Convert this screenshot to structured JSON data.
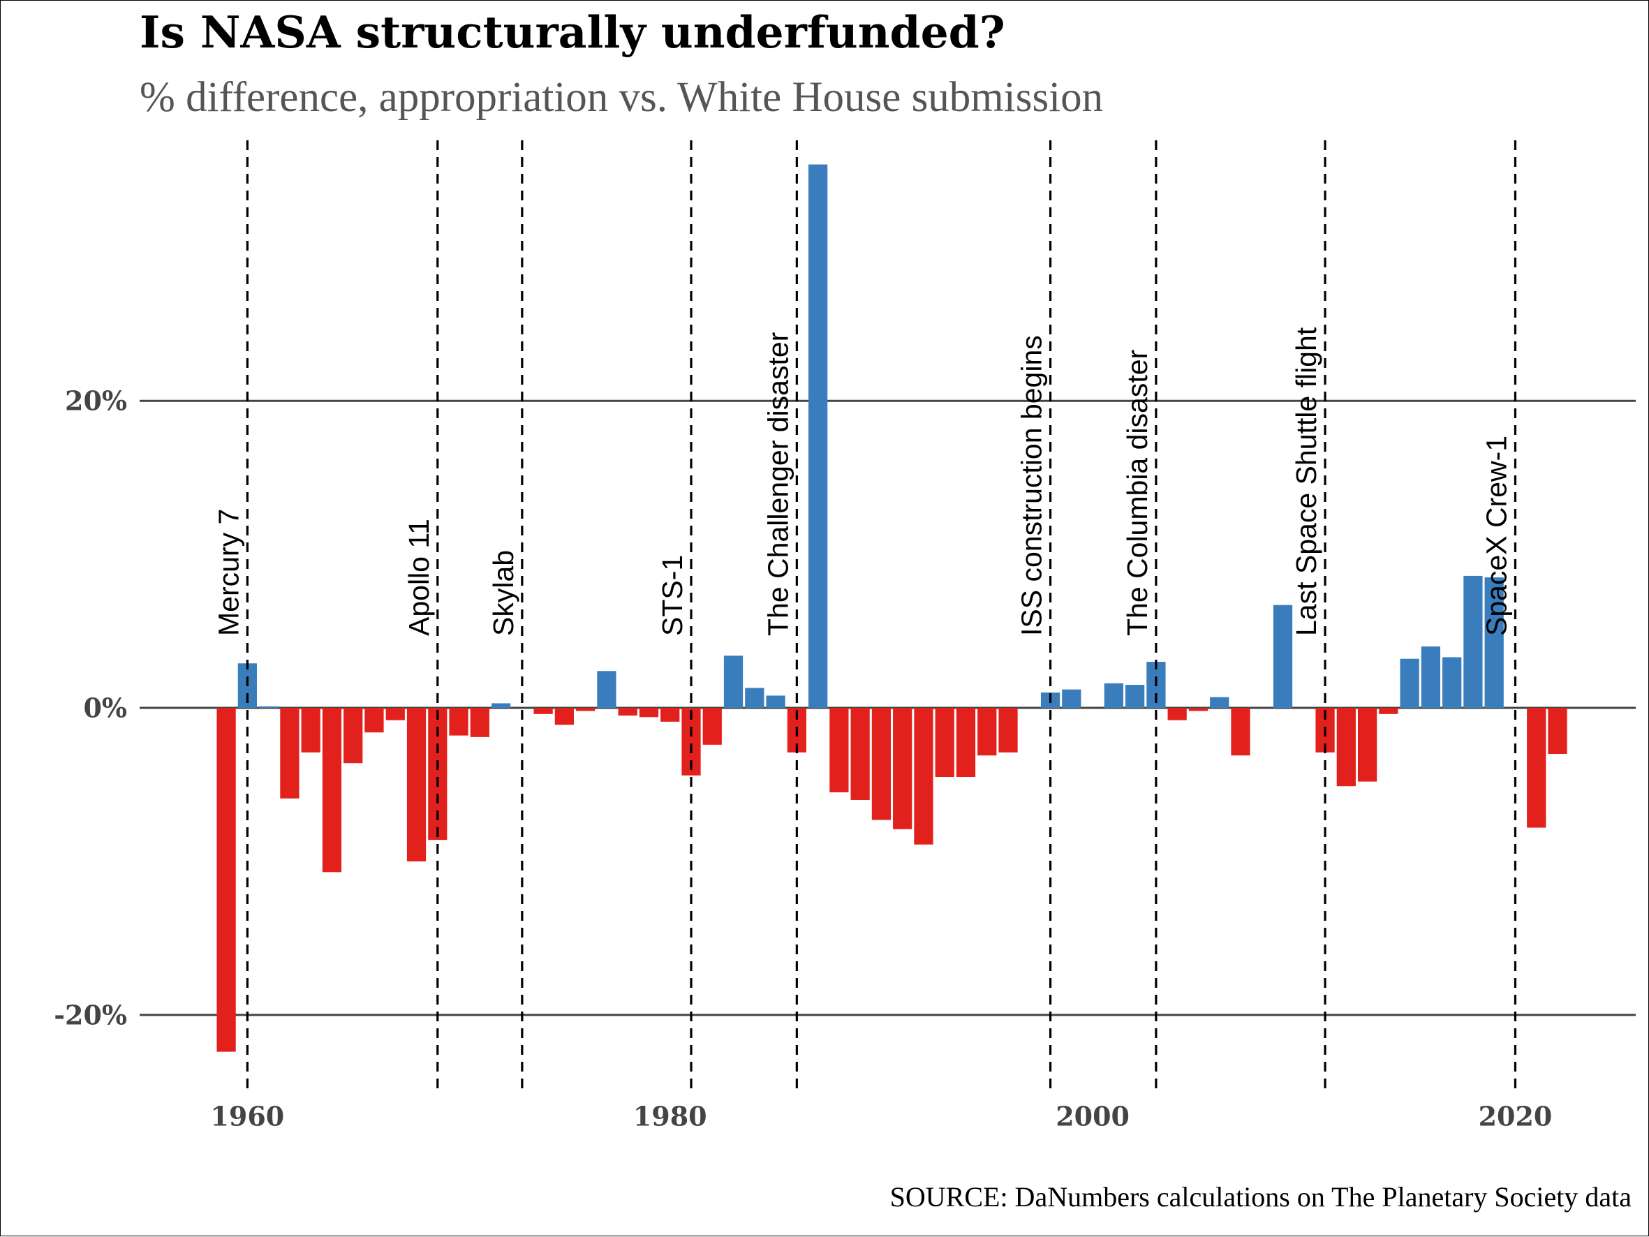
{
  "chart_data": {
    "type": "bar",
    "title": "Is NASA structurally underfunded?",
    "subtitle": "% difference, appropriation vs. White House submission",
    "source": "SOURCE: DaNumbers calculations on The Planetary Society data",
    "xlabel": "",
    "ylabel": "",
    "xlim": [
      1954.9,
      2025.7
    ],
    "ylim": [
      -25.1,
      37.2
    ],
    "x_ticks": [
      {
        "value": 1960,
        "label": "1960"
      },
      {
        "value": 1980,
        "label": "1980"
      },
      {
        "value": 2000,
        "label": "2000"
      },
      {
        "value": 2020,
        "label": "2020"
      }
    ],
    "y_ticks": [
      {
        "value": 20,
        "label": "20%"
      },
      {
        "value": 0,
        "label": "0%"
      },
      {
        "value": -20,
        "label": "-20%"
      }
    ],
    "grid": {
      "x": false,
      "y": true
    },
    "colors": {
      "positive": "#3a7dbc",
      "negative": "#e3211c",
      "gridline": "#444444",
      "event_line": "#000000"
    },
    "x": [
      1959,
      1960,
      1961,
      1962,
      1963,
      1964,
      1965,
      1966,
      1967,
      1968,
      1969,
      1970,
      1971,
      1972,
      1973,
      1974,
      1975,
      1976,
      1977,
      1978,
      1979,
      1980,
      1981,
      1982,
      1983,
      1984,
      1985,
      1986,
      1987,
      1988,
      1989,
      1990,
      1991,
      1992,
      1993,
      1994,
      1995,
      1996,
      1997,
      1998,
      1999,
      2000,
      2001,
      2002,
      2003,
      2004,
      2005,
      2006,
      2007,
      2008,
      2009,
      2010,
      2011,
      2012,
      2013,
      2014,
      2015,
      2016,
      2017,
      2018,
      2019,
      2020,
      2021,
      2022
    ],
    "values": [
      -22.4,
      2.9,
      0.1,
      -5.9,
      -2.9,
      -10.7,
      -3.6,
      -1.6,
      -0.8,
      -10.0,
      -8.6,
      -1.8,
      -1.9,
      0.3,
      0.0,
      -0.4,
      -1.1,
      -0.2,
      2.4,
      -0.5,
      -0.6,
      -0.9,
      -4.4,
      -2.4,
      3.4,
      1.3,
      0.8,
      -2.9,
      35.4,
      -5.5,
      -6.0,
      -7.3,
      -7.9,
      -8.9,
      -4.5,
      -4.5,
      -3.1,
      -2.9,
      0.0,
      1.0,
      1.2,
      0.0,
      1.6,
      1.5,
      3.0,
      -0.8,
      -0.2,
      0.7,
      -3.1,
      0.0,
      6.7,
      0.0,
      -2.9,
      -5.1,
      -4.8,
      -0.4,
      3.2,
      4.0,
      3.3,
      8.6,
      8.5,
      0.0,
      -7.8,
      -3.0
    ],
    "events": [
      {
        "year": 1960,
        "label": "Mercury 7"
      },
      {
        "year": 1969,
        "label": "Apollo 11"
      },
      {
        "year": 1973,
        "label": "Skylab"
      },
      {
        "year": 1981,
        "label": "STS-1"
      },
      {
        "year": 1986,
        "label": "The Challenger disaster"
      },
      {
        "year": 1998,
        "label": "ISS construction begins"
      },
      {
        "year": 2003,
        "label": "The Columbia disaster"
      },
      {
        "year": 2011,
        "label": "Last Space Shuttle flight"
      },
      {
        "year": 2020,
        "label": "SpaceX Crew-1"
      }
    ]
  }
}
